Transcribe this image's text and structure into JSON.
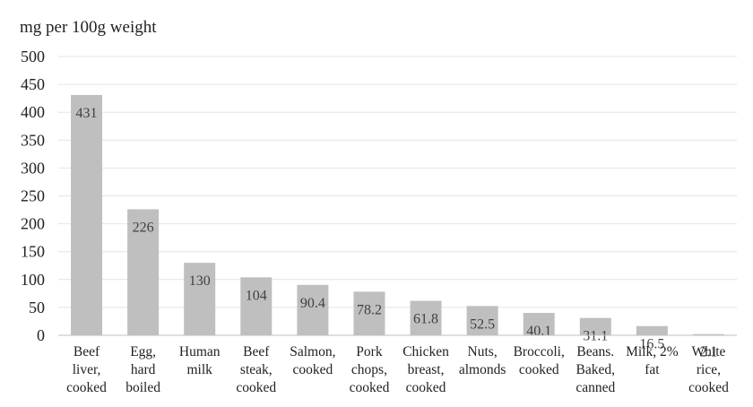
{
  "chart_data": {
    "type": "bar",
    "title": "",
    "xlabel": "",
    "ylabel": "mg per 100g weight",
    "ylim": [
      0,
      500
    ],
    "yticks": [
      0,
      50,
      100,
      150,
      200,
      250,
      300,
      350,
      400,
      450,
      500
    ],
    "grid": true,
    "legend": "none",
    "bar_color": "#bfbfbf",
    "categories": [
      [
        "Beef",
        "liver,",
        "cooked"
      ],
      [
        "Egg,",
        "hard",
        "boiled"
      ],
      [
        "Human",
        "milk"
      ],
      [
        "Beef",
        "steak,",
        "cooked"
      ],
      [
        "Salmon,",
        "cooked"
      ],
      [
        "Pork",
        "chops,",
        "cooked"
      ],
      [
        "Chicken",
        "breast,",
        "cooked"
      ],
      [
        "Nuts,",
        "almonds"
      ],
      [
        "Broccoli,",
        "cooked"
      ],
      [
        "Beans.",
        "Baked,",
        "canned"
      ],
      [
        "Milk, 2%",
        "fat"
      ],
      [
        "White",
        "rice,",
        "cooked"
      ]
    ],
    "values": [
      431,
      226,
      130,
      104,
      90.4,
      78.2,
      61.8,
      52.5,
      40.1,
      31.1,
      16.5,
      2.1
    ],
    "data_labels": [
      "431",
      "226",
      "130",
      "104",
      "90.4",
      "78.2",
      "61.8",
      "52.5",
      "40.1",
      "31.1",
      "16.5",
      "2.1"
    ]
  }
}
